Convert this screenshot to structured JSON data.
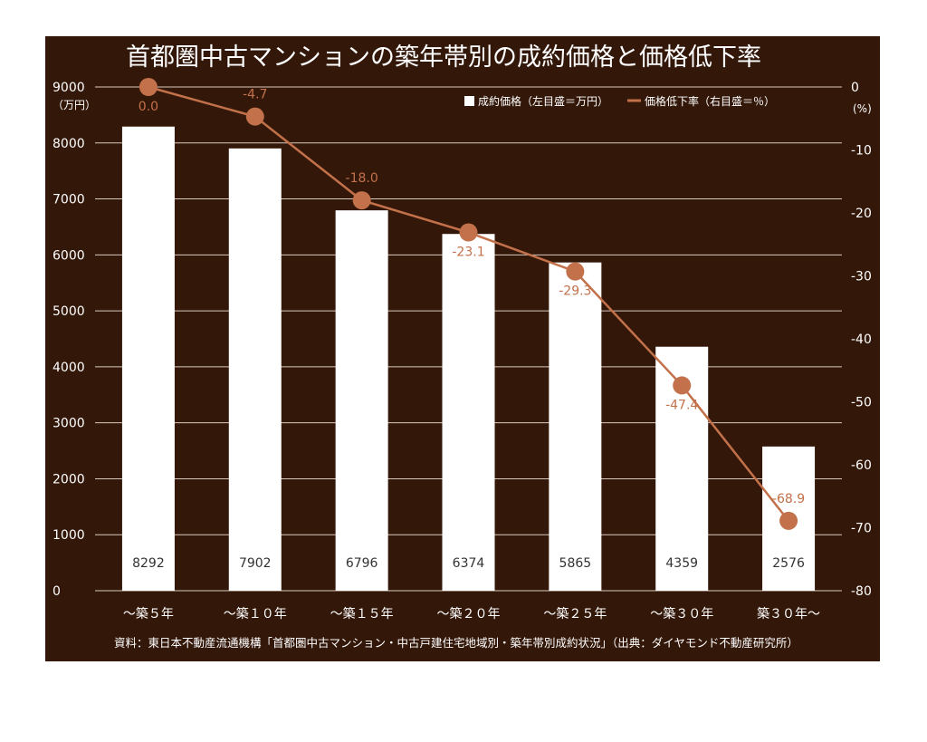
{
  "chart_data": {
    "type": "bar+line",
    "title": "首都圏中古マンションの築年帯別の成約価格と価格低下率",
    "categories": [
      "～築５年",
      "～築１０年",
      "～築１５年",
      "～築２０年",
      "～築２５年",
      "～築３０年",
      "築３０年～"
    ],
    "series": [
      {
        "name": "成約価格（左目盛＝万円）",
        "type": "bar",
        "axis": "left",
        "values": [
          8292,
          7902,
          6796,
          6374,
          5865,
          4359,
          2576
        ],
        "labels": [
          "8292",
          "7902",
          "6796",
          "6374",
          "5865",
          "4359",
          "2576"
        ]
      },
      {
        "name": "価格低下率（右目盛＝％）",
        "type": "line",
        "axis": "right",
        "values": [
          0.0,
          -4.7,
          -18.0,
          -23.1,
          -29.3,
          -47.4,
          -68.9
        ],
        "labels": [
          "0.0",
          "-4.7",
          "-18.0",
          "-23.1",
          "-29.3",
          "-47.4",
          "-68.9"
        ]
      }
    ],
    "y_left": {
      "unit": "（万円）",
      "ylim": [
        0,
        9000
      ],
      "ticks": [
        "0",
        "1000",
        "2000",
        "3000",
        "4000",
        "5000",
        "6000",
        "7000",
        "8000",
        "9000"
      ]
    },
    "y_right": {
      "unit": "(%)",
      "ylim": [
        -80,
        0
      ],
      "ticks": [
        "0",
        "-10",
        "-20",
        "-30",
        "-40",
        "-50",
        "-60",
        "-70",
        "-80"
      ]
    },
    "grid": true,
    "legend_position": "top-right",
    "source": "資料：東日本不動産流通機構「首都圏中古マンション・中古戸建住宅地域別・築年帯別成約状況」（出典：ダイヤモンド不動産研究所）"
  },
  "colors": {
    "background": "#331709",
    "bar": "#ffffff",
    "line": "#c2714a",
    "grid": "#d9c9be",
    "text": "#ffffff"
  }
}
